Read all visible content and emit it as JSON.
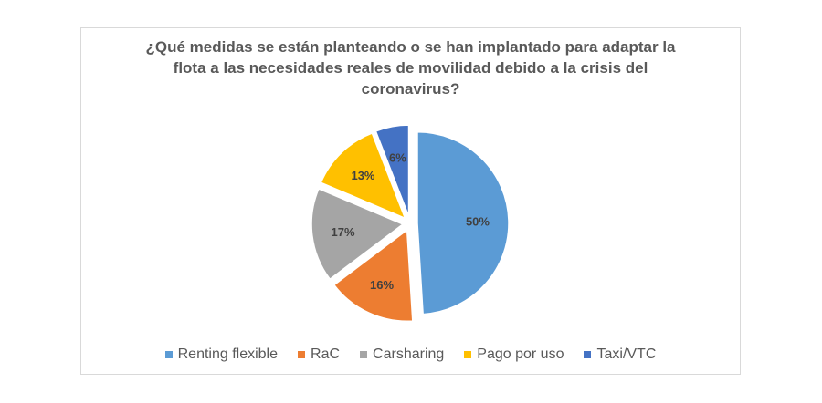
{
  "chart_data": {
    "type": "pie",
    "title": [
      "¿Qué medidas se están planteando o se han implantado para adaptar la",
      "flota a  las necesidades reales de movilidad debido a la crisis del",
      "coronavirus?"
    ],
    "exploded": true,
    "legend_position": "bottom",
    "categories": [
      "Renting flexible",
      "RaC",
      "Carsharing",
      "Pago por uso",
      "Taxi/VTC"
    ],
    "values": [
      50,
      16,
      17,
      13,
      6
    ],
    "labels": [
      "50%",
      "16%",
      "17%",
      "13%",
      "6%"
    ],
    "colors": [
      "#5B9BD5",
      "#ED7D31",
      "#A5A5A5",
      "#FFC000",
      "#4472C4"
    ]
  }
}
